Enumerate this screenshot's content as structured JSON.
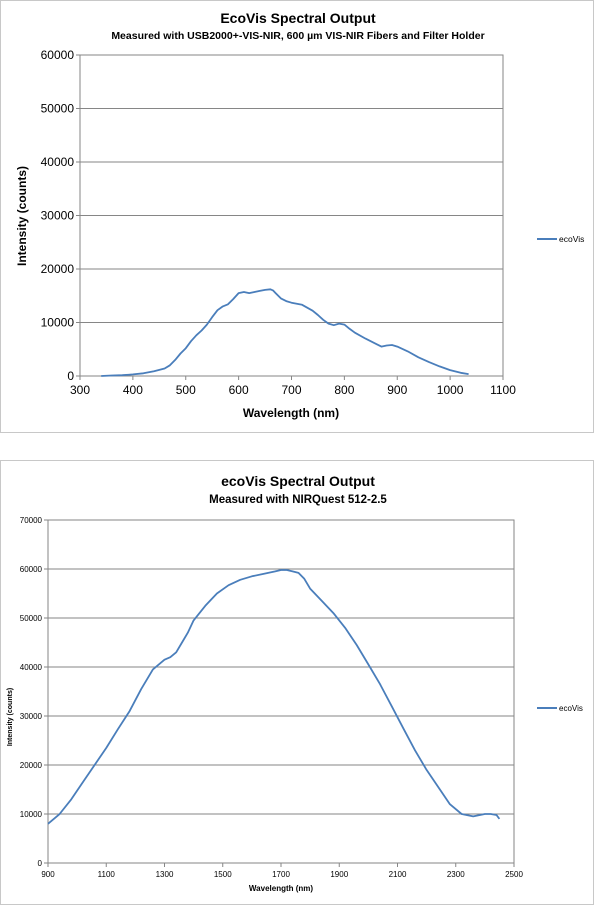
{
  "chart_data": [
    {
      "type": "line",
      "title": "EcoVis Spectral Output",
      "subtitle": "Measured with USB2000+-VIS-NIR, 600 µm VIS-NIR Fibers and Filter Holder",
      "xlabel": "Wavelength (nm)",
      "ylabel": "Intensity  (counts)",
      "xlim": [
        300,
        1100
      ],
      "ylim": [
        0,
        60000
      ],
      "xticks": [
        300,
        400,
        500,
        600,
        700,
        800,
        900,
        1000,
        1100
      ],
      "yticks": [
        0,
        10000,
        20000,
        30000,
        40000,
        50000,
        60000
      ],
      "grid": "horizontal",
      "legend_position": "right",
      "series": [
        {
          "name": "ecoVis",
          "color": "#4a7ebb",
          "x": [
            340,
            360,
            380,
            400,
            420,
            440,
            460,
            470,
            480,
            490,
            500,
            510,
            520,
            530,
            540,
            550,
            560,
            570,
            580,
            590,
            600,
            610,
            620,
            630,
            640,
            650,
            660,
            665,
            670,
            680,
            690,
            700,
            720,
            740,
            750,
            760,
            770,
            780,
            790,
            800,
            810,
            820,
            840,
            860,
            870,
            880,
            890,
            900,
            920,
            940,
            960,
            980,
            1000,
            1020,
            1035
          ],
          "y": [
            0,
            100,
            150,
            300,
            500,
            900,
            1400,
            2000,
            3000,
            4200,
            5200,
            6500,
            7600,
            8500,
            9600,
            11000,
            12300,
            13000,
            13400,
            14400,
            15500,
            15700,
            15500,
            15700,
            15900,
            16100,
            16200,
            16000,
            15500,
            14500,
            14000,
            13700,
            13300,
            12200,
            11400,
            10500,
            9800,
            9500,
            9800,
            9600,
            8800,
            8100,
            7000,
            6000,
            5500,
            5700,
            5800,
            5500,
            4600,
            3500,
            2600,
            1800,
            1100,
            600,
            350
          ]
        }
      ]
    },
    {
      "type": "line",
      "title": "ecoVis Spectral Output",
      "subtitle": "Measured with NIRQuest 512-2.5",
      "xlabel": "Wavelength (nm)",
      "ylabel": "Intensity  (counts)",
      "xlim": [
        900,
        2500
      ],
      "ylim": [
        0,
        70000
      ],
      "xticks": [
        900,
        1100,
        1300,
        1500,
        1700,
        1900,
        2100,
        2300,
        2500
      ],
      "yticks": [
        0,
        10000,
        20000,
        30000,
        40000,
        50000,
        60000,
        70000
      ],
      "grid": "horizontal",
      "legend_position": "right",
      "series": [
        {
          "name": "ecoVis",
          "color": "#4a7ebb",
          "x": [
            900,
            940,
            980,
            1020,
            1060,
            1100,
            1140,
            1180,
            1220,
            1260,
            1300,
            1320,
            1340,
            1360,
            1380,
            1400,
            1440,
            1480,
            1520,
            1560,
            1600,
            1640,
            1680,
            1700,
            1720,
            1740,
            1760,
            1780,
            1800,
            1840,
            1880,
            1920,
            1960,
            2000,
            2040,
            2080,
            2120,
            2160,
            2200,
            2240,
            2280,
            2320,
            2360,
            2400,
            2420,
            2440,
            2450
          ],
          "y": [
            8000,
            10000,
            13000,
            16500,
            20000,
            23500,
            27300,
            31000,
            35500,
            39500,
            41500,
            42000,
            43000,
            45000,
            47000,
            49500,
            52500,
            55000,
            56700,
            57800,
            58500,
            59000,
            59500,
            59800,
            59800,
            59500,
            59200,
            58000,
            56000,
            53500,
            51000,
            48000,
            44500,
            40500,
            36500,
            32000,
            27500,
            23000,
            19000,
            15500,
            12000,
            10000,
            9500,
            10000,
            10000,
            9800,
            9000
          ]
        }
      ]
    }
  ]
}
